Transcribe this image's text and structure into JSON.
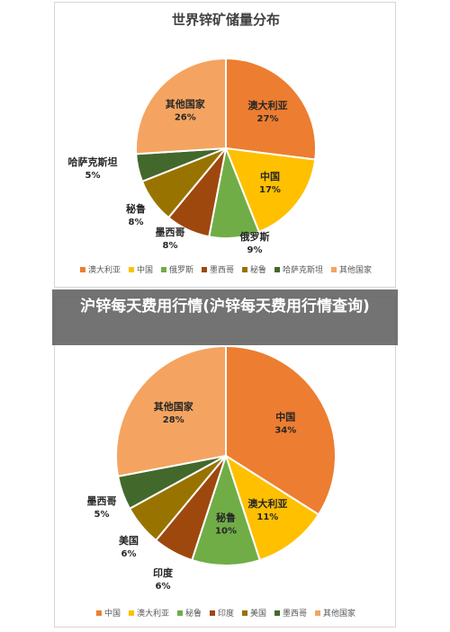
{
  "overlay": {
    "title": "沪锌每天费用行情(沪锌每天费用行情查询)"
  },
  "chart_data": [
    {
      "type": "pie",
      "title": "世界锌矿储量分布",
      "series": [
        {
          "name": "澳大利亚",
          "label": "澳大利亚",
          "value": 27,
          "value_text": "27%",
          "color": "#ed7d31"
        },
        {
          "name": "中国",
          "label": "中国",
          "value": 17,
          "value_text": "17%",
          "color": "#ffc000"
        },
        {
          "name": "俄罗斯",
          "label": "俄罗斯",
          "value": 9,
          "value_text": "9%",
          "color": "#70ad47"
        },
        {
          "name": "墨西哥",
          "label": "墨西哥",
          "value": 8,
          "value_text": "8%",
          "color": "#9e480e"
        },
        {
          "name": "秘鲁",
          "label": "秘鲁",
          "value": 8,
          "value_text": "8%",
          "color": "#997300"
        },
        {
          "name": "哈萨克斯坦",
          "label": "哈萨克斯坦",
          "value": 5,
          "value_text": "5%",
          "color": "#43682b"
        },
        {
          "name": "其他国家",
          "label": "其他国家",
          "value": 26,
          "value_text": "26%",
          "color": "#f4a460"
        }
      ],
      "legend_position": "bottom"
    },
    {
      "type": "pie",
      "title": "",
      "series": [
        {
          "name": "中国",
          "label": "中国",
          "value": 34,
          "value_text": "34%",
          "color": "#ed7d31"
        },
        {
          "name": "澳大利亚",
          "label": "澳大利亚",
          "value": 11,
          "value_text": "11%",
          "color": "#ffc000"
        },
        {
          "name": "秘鲁",
          "label": "秘鲁",
          "value": 10,
          "value_text": "10%",
          "color": "#70ad47"
        },
        {
          "name": "印度",
          "label": "印度",
          "value": 6,
          "value_text": "6%",
          "color": "#9e480e"
        },
        {
          "name": "美国",
          "label": "美国",
          "value": 6,
          "value_text": "6%",
          "color": "#997300"
        },
        {
          "name": "墨西哥",
          "label": "墨西哥",
          "value": 5,
          "value_text": "5%",
          "color": "#43682b"
        },
        {
          "name": "其他国家",
          "label": "其他国家",
          "value": 28,
          "value_text": "28%",
          "color": "#f4a460"
        }
      ],
      "legend_position": "bottom"
    }
  ]
}
